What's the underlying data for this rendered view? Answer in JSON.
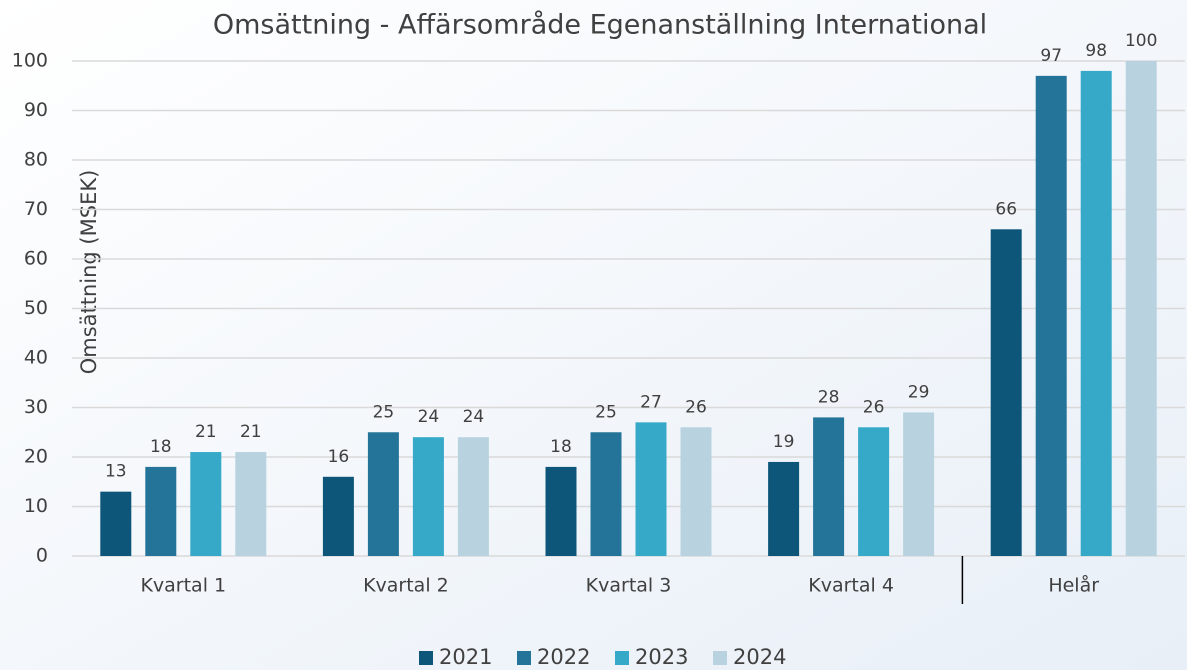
{
  "chart_data": {
    "type": "bar",
    "title": "Omsättning - Affärsområde Egenanställning International",
    "y_label": "Omsättning (MSEK)",
    "categories": [
      "Kvartal 1",
      "Kvartal 2",
      "Kvartal 3",
      "Kvartal 4",
      "Helår"
    ],
    "series": [
      {
        "name": "2021",
        "color": "#0d5679",
        "values": [
          13,
          16,
          18,
          19,
          66
        ]
      },
      {
        "name": "2022",
        "color": "#237498",
        "values": [
          18,
          25,
          25,
          28,
          97
        ]
      },
      {
        "name": "2023",
        "color": "#36a9c8",
        "values": [
          21,
          24,
          27,
          26,
          98
        ]
      },
      {
        "name": "2024",
        "color": "#b8d3df",
        "values": [
          21,
          24,
          26,
          29,
          100
        ]
      }
    ],
    "ylim": [
      0,
      100
    ],
    "yticks": [
      0,
      10,
      20,
      30,
      40,
      50,
      60,
      70,
      80,
      90,
      100
    ],
    "grid": true,
    "legend": "bottom"
  }
}
